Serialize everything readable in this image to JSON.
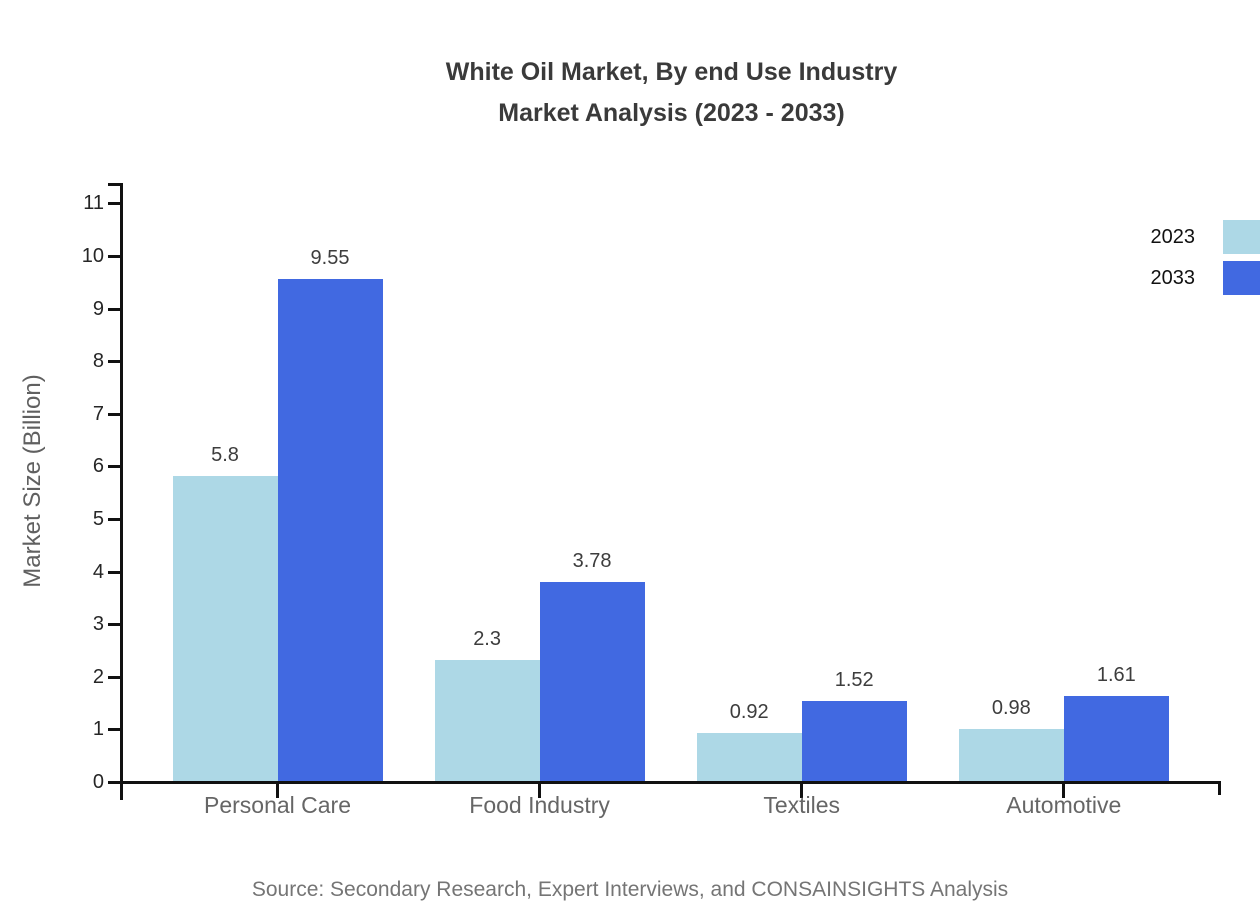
{
  "chart_data": {
    "type": "bar",
    "title": "White Oil Market, By end Use Industry",
    "subtitle": "Market Analysis (2023 - 2033)",
    "ylabel": "Market Size (Billion)",
    "xlabel": "",
    "categories": [
      "Personal Care",
      "Food Industry",
      "Textiles",
      "Automotive"
    ],
    "series": [
      {
        "name": "2023",
        "color": "#ADD8E6",
        "values": [
          5.8,
          2.3,
          0.92,
          0.98
        ]
      },
      {
        "name": "2033",
        "color": "#4169E1",
        "values": [
          9.55,
          3.78,
          1.52,
          1.61
        ]
      }
    ],
    "ylim": [
      0,
      11
    ],
    "yticks": [
      0,
      1,
      2,
      3,
      4,
      5,
      6,
      7,
      8,
      9,
      10,
      11
    ],
    "grid": false,
    "value_labels": true,
    "legend_position": "upper-right-outside",
    "source": "Source: Secondary Research, Expert Interviews, and CONSAINSIGHTS Analysis"
  },
  "colors": {
    "series_2023": "#ADD8E6",
    "series_2033": "#4169E1",
    "axis": "#111111",
    "title_text": "#3a3a3a",
    "tick_label_text": "#262626",
    "category_label_text": "#666666",
    "value_label_text": "#3d3d3d",
    "source_text": "#757575",
    "background": "#ffffff"
  }
}
